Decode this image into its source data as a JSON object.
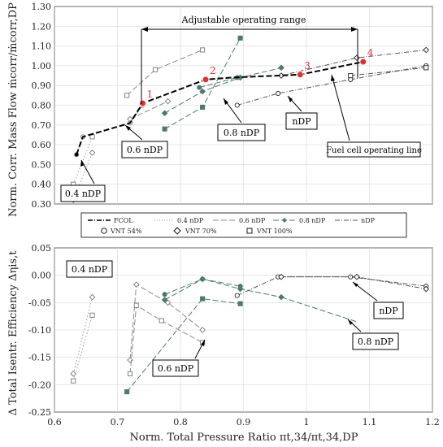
{
  "chart_data": [
    {
      "type": "line",
      "panel": "top",
      "ylabel": "Norm. Corr. Mass Flow ṁcorr/ṁcorr,DP",
      "xlim": [
        0.6,
        1.2
      ],
      "ylim": [
        0.3,
        1.3
      ],
      "yticks": [
        "0.30",
        "0.40",
        "0.50",
        "0.60",
        "0.70",
        "0.80",
        "0.90",
        "1.00",
        "1.10",
        "1.20",
        "1.30"
      ],
      "grid": true,
      "fcol": {
        "name": "FCOL",
        "x": [
          0.635,
          0.645,
          0.72,
          0.74,
          0.84,
          0.88,
          0.99,
          1.09
        ],
        "y": [
          0.55,
          0.64,
          0.71,
          0.81,
          0.93,
          0.94,
          0.955,
          1.02
        ]
      },
      "operating_points": [
        {
          "label": "1",
          "x": 0.74,
          "y": 0.81
        },
        {
          "label": "2",
          "x": 0.84,
          "y": 0.93
        },
        {
          "label": "3",
          "x": 0.99,
          "y": 0.955
        },
        {
          "label": "4",
          "x": 1.09,
          "y": 1.02
        }
      ],
      "series": [
        {
          "group": "0.4 nDP",
          "vnt": "VNT 54%",
          "x": [
            0.635,
            0.645
          ],
          "y": [
            0.55,
            0.64
          ]
        },
        {
          "group": "0.4 nDP",
          "vnt": "VNT 70%",
          "x": [
            0.63,
            0.66
          ],
          "y": [
            0.32,
            0.56
          ]
        },
        {
          "group": "0.4 nDP",
          "vnt": "VNT 100%",
          "x": [
            0.63,
            0.66
          ],
          "y": [
            0.4,
            0.64
          ]
        },
        {
          "group": "0.6 nDP",
          "vnt": "VNT 54%",
          "x": [
            0.72,
            0.74
          ],
          "y": [
            0.71,
            0.8
          ]
        },
        {
          "group": "0.6 nDP",
          "vnt": "VNT 70%",
          "x": [
            0.72,
            0.78
          ],
          "y": [
            0.73,
            0.82
          ]
        },
        {
          "group": "0.6 nDP",
          "vnt": "VNT 100%",
          "x": [
            0.715,
            0.76,
            0.835
          ],
          "y": [
            0.85,
            0.98,
            1.08
          ]
        },
        {
          "group": "0.8 nDP",
          "vnt": "VNT 54%",
          "x": [
            0.83,
            0.89
          ],
          "y": [
            0.89,
            0.94
          ]
        },
        {
          "group": "0.8 nDP",
          "vnt": "VNT 70%",
          "x": [
            0.775,
            0.835,
            0.895,
            0.96
          ],
          "y": [
            0.76,
            0.87,
            0.94,
            0.99
          ]
        },
        {
          "group": "0.8 nDP",
          "vnt": "VNT 100%",
          "x": [
            0.775,
            0.835,
            0.895
          ],
          "y": [
            0.68,
            0.79,
            1.14
          ]
        },
        {
          "group": "nDP",
          "vnt": "VNT 54%",
          "x": [
            0.89,
            0.955,
            1.07,
            1.19
          ],
          "y": [
            0.8,
            0.86,
            0.93,
            1.0
          ]
        },
        {
          "group": "nDP",
          "vnt": "VNT 70%",
          "x": [
            0.96,
            1.08,
            1.19
          ],
          "y": [
            0.95,
            1.04,
            1.08
          ]
        },
        {
          "group": "nDP",
          "vnt": "VNT 100%",
          "x": [
            1.07,
            1.19
          ],
          "y": [
            0.95,
            0.99
          ]
        }
      ],
      "annotations": [
        "Adjustable operating range",
        "0.4 nDP",
        "0.6 nDP",
        "0.8 nDP",
        "nDP",
        "Fuel cell operating line"
      ]
    },
    {
      "type": "line",
      "panel": "bottom",
      "xlabel": "Norm. Total Pressure Ratio πt,34/πt,34,DP",
      "ylabel": "Δ Total Isentr. Efficiency Δηis,t",
      "xlim": [
        0.6,
        1.2
      ],
      "ylim": [
        -0.25,
        0.05
      ],
      "xticks": [
        "0.6",
        "0.7",
        "0.8",
        "0.9",
        "1",
        "1.1",
        "1.2"
      ],
      "yticks": [
        "0.05",
        "0.00",
        "-0.05",
        "-0.10",
        "-0.15",
        "-0.20",
        "-0.25"
      ],
      "grid": true,
      "series": [
        {
          "group": "0.4 nDP",
          "vnt": "VNT 70%",
          "x": [
            0.63,
            0.66
          ],
          "y": [
            -0.18,
            -0.04
          ]
        },
        {
          "group": "0.4 nDP",
          "vnt": "VNT 100%",
          "x": [
            0.63,
            0.66
          ],
          "y": [
            -0.193,
            -0.073
          ]
        },
        {
          "group": "0.6 nDP",
          "vnt": "VNT 70%",
          "x": [
            0.72,
            0.73,
            0.78,
            0.835
          ],
          "y": [
            -0.155,
            -0.017,
            -0.05,
            -0.1
          ]
        },
        {
          "group": "0.6 nDP",
          "vnt": "VNT 100%",
          "x": [
            0.72,
            0.73,
            0.77,
            0.835
          ],
          "y": [
            -0.18,
            -0.055,
            -0.083,
            -0.123
          ]
        },
        {
          "group": "0.8 nDP",
          "vnt": "VNT 54%",
          "x": [
            0.775,
            0.835,
            0.895
          ],
          "y": [
            -0.035,
            -0.007,
            -0.02
          ]
        },
        {
          "group": "0.8 nDP",
          "vnt": "VNT 70%",
          "x": [
            0.775,
            0.835,
            0.895,
            0.96
          ],
          "y": [
            -0.045,
            -0.007,
            -0.025,
            -0.04
          ]
        },
        {
          "group": "0.8 nDP",
          "vnt": "VNT 100%",
          "x": [
            0.715,
            0.835,
            0.895
          ],
          "y": [
            -0.213,
            -0.043,
            -0.052
          ]
        },
        {
          "group": "0.8 nDP",
          "vnt": "line",
          "x": [
            0.96,
            1.08
          ],
          "y": [
            -0.04,
            -0.085
          ]
        },
        {
          "group": "nDP",
          "vnt": "VNT 54%",
          "x": [
            0.89,
            0.955,
            1.07,
            1.19
          ],
          "y": [
            -0.037,
            -0.003,
            -0.003,
            -0.02
          ]
        },
        {
          "group": "nDP",
          "vnt": "VNT 70%",
          "x": [
            0.96,
            1.08,
            1.19
          ],
          "y": [
            -0.003,
            -0.003,
            -0.025
          ]
        }
      ],
      "annotations": [
        "0.4 nDP",
        "0.6 nDP",
        "0.8 nDP",
        "nDP"
      ]
    }
  ],
  "legend": {
    "items": [
      "FCOL",
      "0.4 nDP",
      "0.6 nDP",
      "0.8 nDP",
      "nDP",
      "VNT 54%",
      "VNT 70%",
      "VNT 100%"
    ]
  },
  "colors": {
    "fcol": "#000000",
    "n04": "#9a9a9a",
    "n06": "#8a8a8a",
    "n08": "#4d7a6a",
    "ndp": "#555555",
    "red": "#e03030"
  }
}
